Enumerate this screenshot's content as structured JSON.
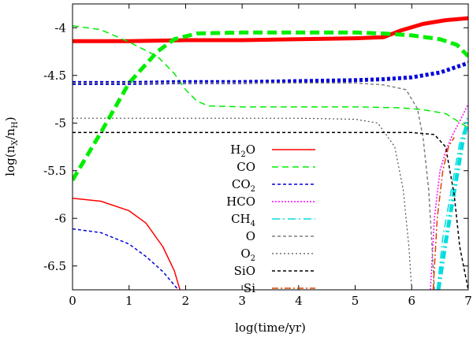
{
  "chart_data": {
    "type": "line",
    "title": "",
    "xlabel": "log(time/yr)",
    "ylabel": "log(n_X/n_H)",
    "xlim": [
      0,
      7
    ],
    "ylim": [
      -6.75,
      -3.75
    ],
    "xticks": [
      0,
      1,
      2,
      3,
      4,
      5,
      6,
      7
    ],
    "yticks": [
      -6.5,
      -6,
      -5.5,
      -5,
      -4.5,
      -4
    ],
    "xtick_labels": [
      "0",
      "1",
      "2",
      "3",
      "4",
      "5",
      "6",
      "7"
    ],
    "ytick_labels": [
      "-6.5",
      "-6",
      "-5.5",
      "-5",
      "-4.5",
      "-4"
    ],
    "legend_position": "center",
    "grid": false,
    "series": [
      {
        "name": "H2O",
        "label_main": "H",
        "label_sub": "2",
        "label_rest": "O",
        "color": "#ff0000",
        "dash": "solid",
        "width": 1.5,
        "thick": false,
        "points": [
          [
            0,
            -5.79
          ],
          [
            0.5,
            -5.82
          ],
          [
            1,
            -5.92
          ],
          [
            1.3,
            -6.05
          ],
          [
            1.6,
            -6.3
          ],
          [
            1.8,
            -6.55
          ],
          [
            1.9,
            -6.75
          ]
        ]
      },
      {
        "name": "H2O (ice)",
        "color": "#ff0000",
        "dash": "solid",
        "width": 5,
        "thick": true,
        "points": [
          [
            0,
            -4.14
          ],
          [
            1,
            -4.14
          ],
          [
            2,
            -4.13
          ],
          [
            3,
            -4.13
          ],
          [
            4,
            -4.12
          ],
          [
            5,
            -4.11
          ],
          [
            5.5,
            -4.1
          ],
          [
            5.8,
            -4.03
          ],
          [
            6.2,
            -3.96
          ],
          [
            6.6,
            -3.92
          ],
          [
            7,
            -3.9
          ]
        ]
      },
      {
        "name": "CO",
        "label_main": "CO",
        "color": "#00ee00",
        "dash": "8,5",
        "width": 1.5,
        "thick": false,
        "points": [
          [
            0,
            -3.98
          ],
          [
            0.5,
            -4.02
          ],
          [
            1,
            -4.15
          ],
          [
            1.5,
            -4.3
          ],
          [
            1.8,
            -4.48
          ],
          [
            2,
            -4.65
          ],
          [
            2.2,
            -4.77
          ],
          [
            2.4,
            -4.82
          ],
          [
            3,
            -4.83
          ],
          [
            4,
            -4.83
          ],
          [
            5,
            -4.83
          ],
          [
            5.8,
            -4.84
          ],
          [
            6.2,
            -4.86
          ],
          [
            6.6,
            -4.9
          ],
          [
            7,
            -5.05
          ]
        ]
      },
      {
        "name": "CO (ice)",
        "color": "#00ee00",
        "dash": "12,6",
        "width": 5,
        "thick": true,
        "points": [
          [
            0,
            -5.6
          ],
          [
            0.5,
            -5.1
          ],
          [
            1,
            -4.58
          ],
          [
            1.5,
            -4.25
          ],
          [
            1.8,
            -4.12
          ],
          [
            2.2,
            -4.06
          ],
          [
            3,
            -4.05
          ],
          [
            4,
            -4.05
          ],
          [
            5,
            -4.05
          ],
          [
            5.5,
            -4.06
          ],
          [
            6,
            -4.08
          ],
          [
            6.5,
            -4.12
          ],
          [
            6.8,
            -4.18
          ],
          [
            7,
            -4.3
          ]
        ]
      },
      {
        "name": "CO2",
        "label_main": "CO",
        "label_sub": "2",
        "color": "#0000dd",
        "dash": "4,3",
        "width": 1.5,
        "thick": false,
        "points": [
          [
            0,
            -6.11
          ],
          [
            0.5,
            -6.15
          ],
          [
            1,
            -6.27
          ],
          [
            1.3,
            -6.4
          ],
          [
            1.6,
            -6.56
          ],
          [
            1.8,
            -6.7
          ],
          [
            1.87,
            -6.75
          ]
        ]
      },
      {
        "name": "CO2 (ice)",
        "color": "#0000dd",
        "dash": "4,3",
        "width": 5,
        "thick": true,
        "points": [
          [
            0,
            -4.58
          ],
          [
            1,
            -4.58
          ],
          [
            2,
            -4.57
          ],
          [
            3,
            -4.57
          ],
          [
            4,
            -4.56
          ],
          [
            5,
            -4.55
          ],
          [
            5.5,
            -4.54
          ],
          [
            6,
            -4.52
          ],
          [
            6.5,
            -4.47
          ],
          [
            7,
            -4.37
          ]
        ]
      },
      {
        "name": "HCO",
        "label_main": "HCO",
        "color": "#ff00ff",
        "dash": "2,2",
        "width": 1.5,
        "thick": false,
        "points": [
          [
            6.33,
            -6.75
          ],
          [
            6.4,
            -6.0
          ],
          [
            6.5,
            -5.5
          ],
          [
            6.6,
            -5.3
          ],
          [
            6.7,
            -5.15
          ],
          [
            6.85,
            -4.98
          ],
          [
            7,
            -4.8
          ]
        ]
      },
      {
        "name": "CH4",
        "label_main": "CH",
        "label_sub": "4",
        "color": "#00dddd",
        "dash": "10,4,2,4",
        "width": 1.5,
        "thick": false,
        "points": [
          [
            6.45,
            -6.75
          ],
          [
            6.55,
            -6.2
          ],
          [
            6.7,
            -5.7
          ],
          [
            6.85,
            -5.2
          ],
          [
            7,
            -4.95
          ]
        ]
      },
      {
        "name": "CH4 (ice)",
        "color": "#00dddd",
        "dash": "10,4,2,4",
        "width": 5,
        "thick": true,
        "points": [
          [
            6.47,
            -6.75
          ],
          [
            6.6,
            -6.25
          ],
          [
            6.75,
            -5.72
          ],
          [
            6.9,
            -5.2
          ],
          [
            7,
            -4.95
          ]
        ]
      },
      {
        "name": "O",
        "label_main": "O",
        "color": "#808080",
        "dash": "4,3",
        "width": 1.5,
        "thick": false,
        "points": [
          [
            0,
            -4.58
          ],
          [
            2,
            -4.58
          ],
          [
            4,
            -4.58
          ],
          [
            5,
            -4.58
          ],
          [
            5.5,
            -4.6
          ],
          [
            5.9,
            -4.65
          ],
          [
            6.1,
            -4.85
          ],
          [
            6.2,
            -5.15
          ],
          [
            6.3,
            -5.7
          ],
          [
            6.36,
            -6.3
          ],
          [
            6.4,
            -6.75
          ]
        ]
      },
      {
        "name": "O2",
        "label_main": "O",
        "label_sub": "2",
        "color": "#505050",
        "dash": "2,3",
        "width": 1.2,
        "thick": false,
        "points": [
          [
            0,
            -4.95
          ],
          [
            2,
            -4.95
          ],
          [
            4,
            -4.95
          ],
          [
            5,
            -4.96
          ],
          [
            5.4,
            -5.0
          ],
          [
            5.7,
            -5.25
          ],
          [
            5.85,
            -5.7
          ],
          [
            5.95,
            -6.3
          ],
          [
            6,
            -6.75
          ]
        ]
      },
      {
        "name": "SiO",
        "label_main": "SiO",
        "color": "#000000",
        "dash": "4,3",
        "width": 1.5,
        "thick": false,
        "points": [
          [
            0,
            -5.1
          ],
          [
            2,
            -5.1
          ],
          [
            4,
            -5.1
          ],
          [
            6,
            -5.1
          ],
          [
            6.4,
            -5.12
          ],
          [
            6.6,
            -5.25
          ],
          [
            6.75,
            -5.75
          ],
          [
            6.85,
            -6.3
          ],
          [
            6.95,
            -6.6
          ],
          [
            7,
            -6.75
          ]
        ]
      },
      {
        "name": "Si",
        "label_main": "Si",
        "color": "#dd4400",
        "dash": "8,3,2,3",
        "width": 1.5,
        "thick": false,
        "points": [
          [
            6.38,
            -6.75
          ],
          [
            6.45,
            -6.0
          ],
          [
            6.55,
            -5.5
          ],
          [
            6.65,
            -5.25
          ],
          [
            6.75,
            -5.15
          ]
        ]
      }
    ],
    "legend": [
      {
        "series": "H2O"
      },
      {
        "series": "CO"
      },
      {
        "series": "CO2"
      },
      {
        "series": "HCO"
      },
      {
        "series": "CH4"
      },
      {
        "series": "O"
      },
      {
        "series": "O2"
      },
      {
        "series": "SiO"
      },
      {
        "series": "Si"
      }
    ]
  }
}
